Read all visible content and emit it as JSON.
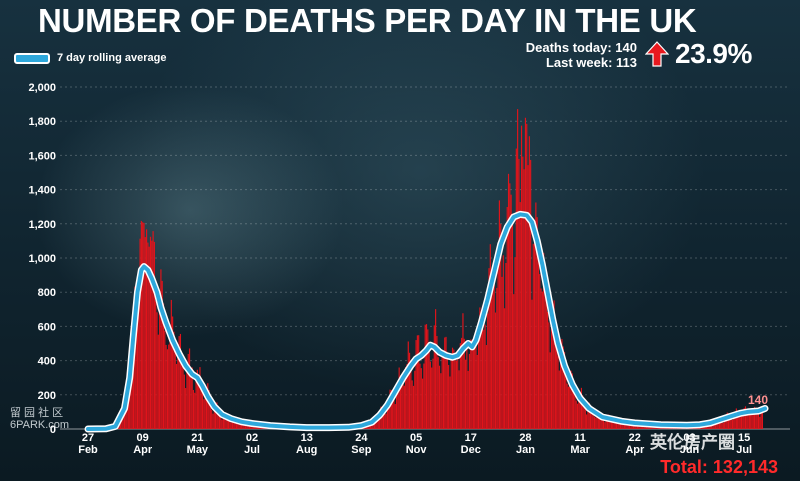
{
  "chart_data": {
    "type": "bar",
    "title": "NUMBER OF DEATHS PER DAY IN THE UK",
    "legend": {
      "label": "7 day rolling average",
      "position": "top-left"
    },
    "ylim": [
      0,
      2000
    ],
    "yticks": [
      "2,000",
      "1,800",
      "1,600",
      "1,400",
      "1,200",
      "1,000",
      "800",
      "600",
      "400",
      "200",
      "0"
    ],
    "ytick_values": [
      2000,
      1800,
      1600,
      1400,
      1200,
      1000,
      800,
      600,
      400,
      200,
      0
    ],
    "grid": true,
    "xticks": [
      {
        "day": "27",
        "month": "Feb",
        "index": 0
      },
      {
        "day": "09",
        "month": "Apr",
        "index": 42
      },
      {
        "day": "21",
        "month": "May",
        "index": 84
      },
      {
        "day": "02",
        "month": "Jul",
        "index": 126
      },
      {
        "day": "13",
        "month": "Aug",
        "index": 168
      },
      {
        "day": "24",
        "month": "Sep",
        "index": 210
      },
      {
        "day": "05",
        "month": "Nov",
        "index": 252
      },
      {
        "day": "17",
        "month": "Dec",
        "index": 294
      },
      {
        "day": "28",
        "month": "Jan",
        "index": 336
      },
      {
        "day": "11",
        "month": "Mar",
        "index": 378
      },
      {
        "day": "22",
        "month": "Apr",
        "index": 420
      },
      {
        "day": "03",
        "month": "Jun",
        "index": 462
      },
      {
        "day": "15",
        "month": "Jul",
        "index": 504
      }
    ],
    "x_range_days": [
      0,
      504
    ],
    "series": [
      {
        "name": "7 day rolling average",
        "kind": "line",
        "color": "#2ea8dc",
        "points": [
          [
            0,
            0
          ],
          [
            14,
            2
          ],
          [
            21,
            15
          ],
          [
            28,
            120
          ],
          [
            32,
            300
          ],
          [
            35,
            560
          ],
          [
            38,
            800
          ],
          [
            41,
            930
          ],
          [
            43,
            950
          ],
          [
            46,
            930
          ],
          [
            49,
            880
          ],
          [
            53,
            800
          ],
          [
            56,
            710
          ],
          [
            60,
            620
          ],
          [
            65,
            520
          ],
          [
            70,
            440
          ],
          [
            75,
            370
          ],
          [
            80,
            320
          ],
          [
            84,
            300
          ],
          [
            88,
            250
          ],
          [
            92,
            190
          ],
          [
            97,
            130
          ],
          [
            103,
            85
          ],
          [
            110,
            60
          ],
          [
            118,
            42
          ],
          [
            126,
            32
          ],
          [
            140,
            20
          ],
          [
            155,
            12
          ],
          [
            168,
            8
          ],
          [
            185,
            8
          ],
          [
            200,
            10
          ],
          [
            210,
            20
          ],
          [
            218,
            40
          ],
          [
            224,
            80
          ],
          [
            230,
            140
          ],
          [
            236,
            220
          ],
          [
            242,
            300
          ],
          [
            248,
            370
          ],
          [
            252,
            410
          ],
          [
            256,
            430
          ],
          [
            260,
            460
          ],
          [
            263,
            490
          ],
          [
            266,
            480
          ],
          [
            270,
            450
          ],
          [
            275,
            430
          ],
          [
            280,
            420
          ],
          [
            284,
            430
          ],
          [
            288,
            470
          ],
          [
            292,
            500
          ],
          [
            295,
            480
          ],
          [
            298,
            520
          ],
          [
            302,
            620
          ],
          [
            307,
            760
          ],
          [
            312,
            920
          ],
          [
            317,
            1080
          ],
          [
            322,
            1180
          ],
          [
            327,
            1240
          ],
          [
            332,
            1255
          ],
          [
            337,
            1250
          ],
          [
            341,
            1210
          ],
          [
            345,
            1100
          ],
          [
            349,
            960
          ],
          [
            353,
            800
          ],
          [
            357,
            640
          ],
          [
            361,
            500
          ],
          [
            366,
            370
          ],
          [
            372,
            260
          ],
          [
            378,
            180
          ],
          [
            385,
            120
          ],
          [
            395,
            70
          ],
          [
            410,
            45
          ],
          [
            420,
            35
          ],
          [
            440,
            25
          ],
          [
            460,
            22
          ],
          [
            470,
            25
          ],
          [
            478,
            35
          ],
          [
            486,
            55
          ],
          [
            494,
            75
          ],
          [
            501,
            92
          ],
          [
            507,
            100
          ],
          [
            515,
            105
          ],
          [
            520,
            120
          ]
        ],
        "end_label": "140"
      },
      {
        "name": "Daily deaths",
        "kind": "bar",
        "color": "#e0141b",
        "peaks": [
          {
            "center": 42,
            "value": 1120,
            "note": "spring 2020 peak"
          },
          {
            "center": 46,
            "value": 1230
          },
          {
            "center": 265,
            "value": 620
          },
          {
            "center": 336,
            "value": 1820,
            "note": "January 2021 peak"
          }
        ]
      }
    ],
    "annotation": {
      "text": "140",
      "color": "#ff8080"
    }
  },
  "stats": {
    "deaths_today": "Deaths today: 140",
    "last_week": "Last week: 113",
    "change_pct": "23.9%",
    "total": "Total: 132,143",
    "arrow_color": "#e8191f"
  },
  "watermarks": {
    "left_line1": "留 园 社 区",
    "left_line2": "6PARK.com",
    "right": "英伦房产圈"
  },
  "colors": {
    "background": "#10242f",
    "line": "#2ea8dc",
    "bars": "#e0141b",
    "total": "#ff2a2a"
  }
}
